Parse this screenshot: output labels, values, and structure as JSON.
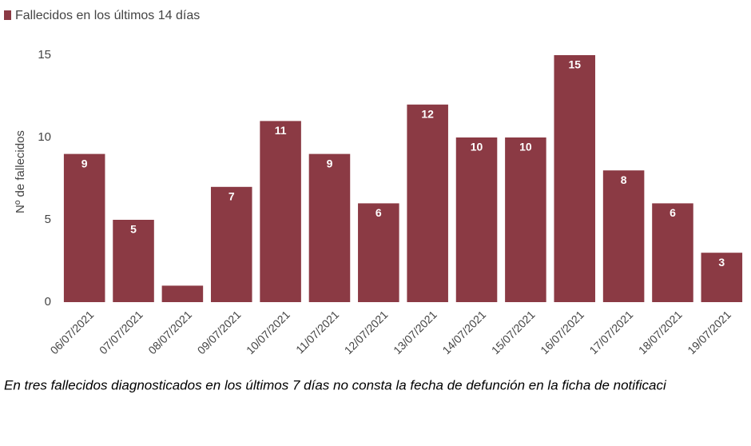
{
  "chart_data": {
    "type": "bar",
    "legend": "Fallecidos en los últimos 14 días",
    "y_label": "Nº de fallecidos",
    "categories": [
      "06/07/2021",
      "07/07/2021",
      "08/07/2021",
      "09/07/2021",
      "10/07/2021",
      "11/07/2021",
      "12/07/2021",
      "13/07/2021",
      "14/07/2021",
      "15/07/2021",
      "16/07/2021",
      "17/07/2021",
      "18/07/2021",
      "19/07/2021"
    ],
    "values": [
      9,
      5,
      1,
      7,
      11,
      9,
      6,
      12,
      10,
      10,
      15,
      8,
      6,
      3
    ],
    "color": "#8b3a44",
    "ylim": [
      0,
      15
    ],
    "yticks": [
      0,
      5,
      10,
      15
    ],
    "note": "En tres fallecidos diagnosticados en los últimos 7 días no consta la fecha de defunción en la ficha de notificaci"
  }
}
